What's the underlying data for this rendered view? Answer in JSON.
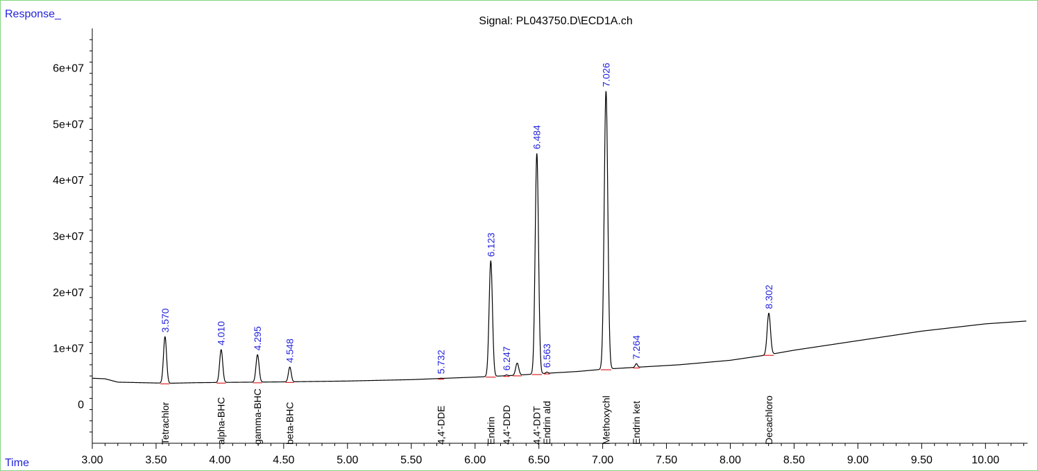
{
  "chart_data": {
    "type": "line",
    "title": "Signal: PL043750.D\\ECD1A.ch",
    "ylabel": "Response_",
    "xlabel": "Time",
    "xlim": [
      3.0,
      10.33
    ],
    "ylim": [
      -7000000,
      67000000
    ],
    "x_ticks": [
      3.0,
      3.5,
      4.0,
      4.5,
      5.0,
      5.5,
      6.0,
      6.5,
      7.0,
      7.5,
      8.0,
      8.5,
      9.0,
      9.5,
      10.0
    ],
    "x_tick_labels": [
      "3.00",
      "3.50",
      "4.00",
      "4.50",
      "5.00",
      "5.50",
      "6.00",
      "6.50",
      "7.00",
      "7.50",
      "8.00",
      "8.50",
      "9.00",
      "9.50",
      "10.00"
    ],
    "y_ticks": [
      0,
      10000000,
      20000000,
      30000000,
      40000000,
      50000000,
      60000000
    ],
    "y_tick_labels": [
      "0",
      "1e+07",
      "2e+07",
      "3e+07",
      "4e+07",
      "5e+07",
      "6e+07"
    ],
    "baseline": [
      [
        3.0,
        4600000
      ],
      [
        3.1,
        4500000
      ],
      [
        3.2,
        3900000
      ],
      [
        3.4,
        3800000
      ],
      [
        3.6,
        3700000
      ],
      [
        3.8,
        3800000
      ],
      [
        4.0,
        3850000
      ],
      [
        4.5,
        3950000
      ],
      [
        5.0,
        4100000
      ],
      [
        5.5,
        4350000
      ],
      [
        6.0,
        4800000
      ],
      [
        6.3,
        5100000
      ],
      [
        6.5,
        5400000
      ],
      [
        6.8,
        5800000
      ],
      [
        7.0,
        6200000
      ],
      [
        7.3,
        6600000
      ],
      [
        7.6,
        7000000
      ],
      [
        8.0,
        7800000
      ],
      [
        8.3,
        8800000
      ],
      [
        8.5,
        9600000
      ],
      [
        9.0,
        11300000
      ],
      [
        9.5,
        13000000
      ],
      [
        10.0,
        14300000
      ],
      [
        10.32,
        14800000
      ]
    ],
    "peaks": [
      {
        "rt": 3.57,
        "rt_label": "3.570",
        "height": 12000000,
        "width": 0.012,
        "compound": "Tetrachlor"
      },
      {
        "rt": 4.01,
        "rt_label": "4.010",
        "height": 9700000,
        "width": 0.012,
        "compound": "alpha-BHC"
      },
      {
        "rt": 4.295,
        "rt_label": "4.295",
        "height": 8800000,
        "width": 0.012,
        "compound": "gamma-BHC"
      },
      {
        "rt": 4.548,
        "rt_label": "4.548",
        "height": 6600000,
        "width": 0.011,
        "compound": "beta-BHC"
      },
      {
        "rt": 5.732,
        "rt_label": "5.732",
        "height": 4600000,
        "width": 0.008,
        "compound": "4,4'-DDE"
      },
      {
        "rt": 6.123,
        "rt_label": "6.123",
        "height": 25500000,
        "width": 0.013,
        "compound": "Endrin"
      },
      {
        "rt": 6.247,
        "rt_label": "6.247",
        "height": 5200000,
        "width": 0.008,
        "compound": "4,4'-DDD"
      },
      {
        "rt": 6.33,
        "rt_label": "",
        "height": 7300000,
        "width": 0.012,
        "compound": ""
      },
      {
        "rt": 6.484,
        "rt_label": "6.484",
        "height": 44700000,
        "width": 0.013,
        "compound": "4,4'-DDT"
      },
      {
        "rt": 6.563,
        "rt_label": "6.563",
        "height": 5700000,
        "width": 0.008,
        "compound": "Endrin ald"
      },
      {
        "rt": 7.026,
        "rt_label": "7.026",
        "height": 55800000,
        "width": 0.014,
        "compound": "Methoxychl"
      },
      {
        "rt": 7.264,
        "rt_label": "7.264",
        "height": 7200000,
        "width": 0.009,
        "compound": "Endrin ket"
      },
      {
        "rt": 8.302,
        "rt_label": "8.302",
        "height": 16200000,
        "width": 0.013,
        "compound": "Decachloro"
      }
    ],
    "colors": {
      "trace": "#000000",
      "rt_label": "#2222dd",
      "axis_label": "#2222dd",
      "integration_mark": "#e02020",
      "frame": "#7ed67e",
      "compound_label": "#000000"
    },
    "grid": false,
    "legend": "none"
  }
}
